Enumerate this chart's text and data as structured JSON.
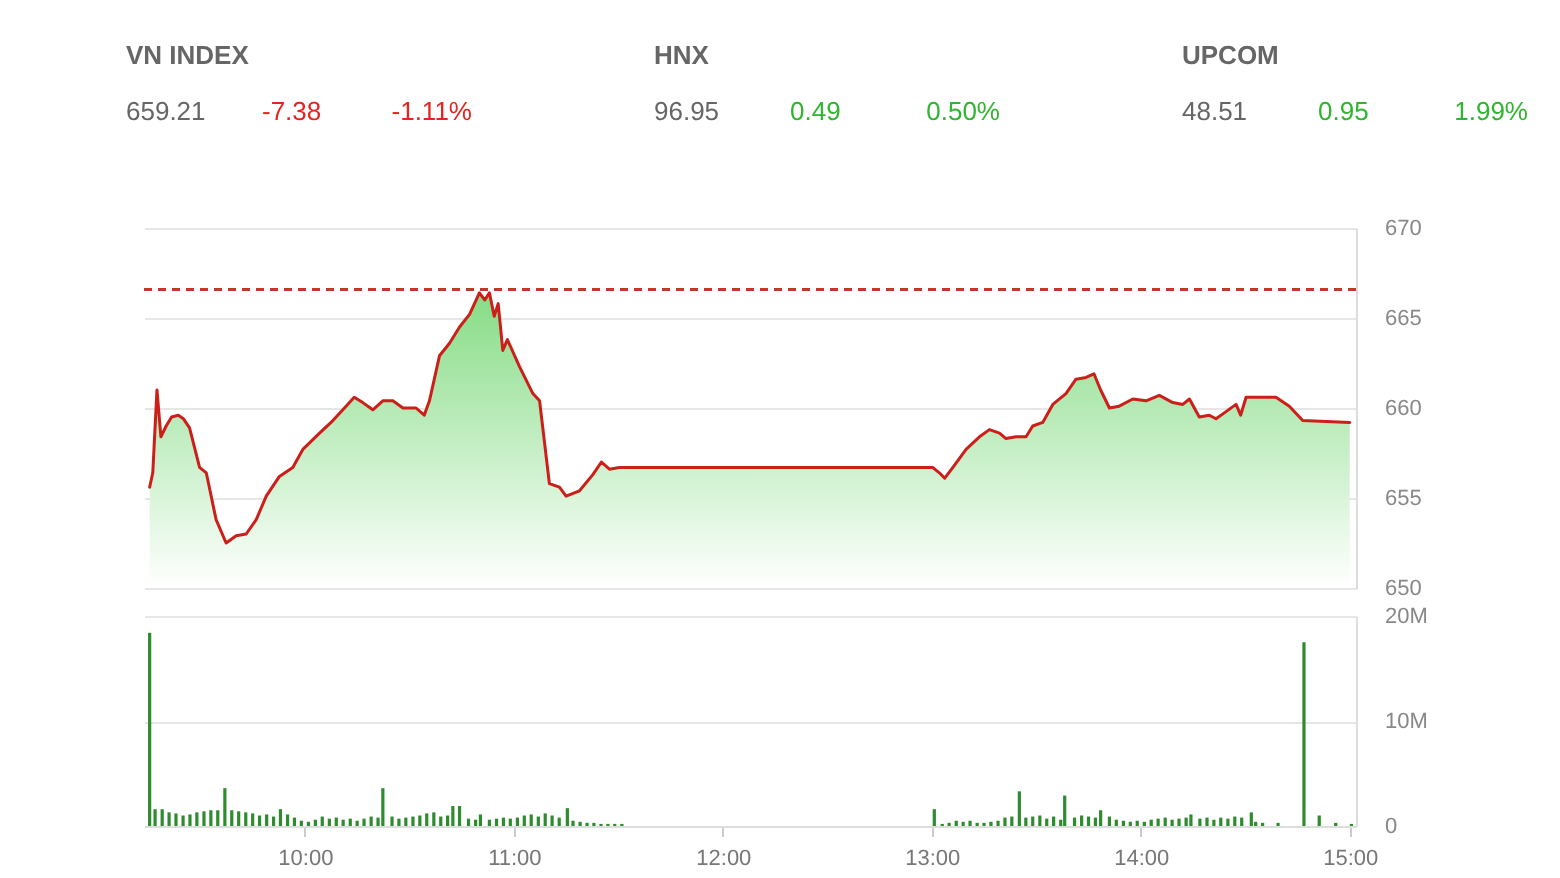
{
  "chart_data": [
    {
      "type": "other",
      "categories": [
        "VN INDEX",
        "HNX",
        "UPCOM"
      ],
      "data_labels": true,
      "series": [
        {
          "values": [
            659.21,
            96.95,
            48.51
          ],
          "color": "#666666"
        },
        {
          "values": [
            -7.38,
            0.49,
            0.95
          ],
          "colors": [
            "#e8231f",
            "#2fb52f",
            "#2fb52f"
          ]
        }
      ],
      "annotations": [
        "-1.11%",
        "0.50%",
        "1.99%"
      ]
    },
    {
      "type": "area",
      "color": "#cc1f1a",
      "x": [
        9.257,
        9.272,
        9.292,
        9.311,
        9.336,
        9.362,
        9.394,
        9.419,
        9.448,
        9.496,
        9.528,
        9.575,
        9.623,
        9.671,
        9.719,
        9.767,
        9.815,
        9.878,
        9.942,
        9.99,
        10.07,
        10.134,
        10.197,
        10.236,
        10.277,
        10.325,
        10.373,
        10.421,
        10.469,
        10.532,
        10.571,
        10.596,
        10.644,
        10.692,
        10.74,
        10.788,
        10.835,
        10.861,
        10.883,
        10.906,
        10.925,
        10.947,
        10.969,
        11.027,
        11.091,
        11.123,
        11.17,
        11.218,
        11.25,
        11.314,
        11.378,
        11.419,
        11.457,
        11.505,
        13.004,
        13.036,
        13.062,
        13.101,
        13.164,
        13.228,
        13.276,
        13.324,
        13.355,
        13.403,
        13.451,
        13.483,
        13.531,
        13.579,
        13.642,
        13.69,
        13.738,
        13.776,
        13.808,
        13.85,
        13.897,
        13.962,
        14.025,
        14.089,
        14.153,
        14.201,
        14.233,
        14.28,
        14.328,
        14.36,
        14.408,
        14.456,
        14.478,
        14.504,
        14.567,
        14.647,
        14.711,
        14.775,
        15.0
      ],
      "values": [
        655.6,
        656.4,
        661.0,
        658.4,
        659.0,
        659.5,
        659.6,
        659.4,
        658.9,
        656.7,
        656.4,
        653.8,
        652.5,
        652.9,
        653.0,
        653.8,
        655.1,
        656.2,
        656.7,
        657.7,
        658.6,
        659.3,
        660.1,
        660.6,
        660.3,
        659.9,
        660.4,
        660.4,
        660.0,
        660.0,
        659.6,
        660.4,
        662.9,
        663.6,
        664.5,
        665.2,
        666.4,
        666.0,
        666.4,
        665.1,
        665.8,
        663.2,
        663.8,
        662.3,
        660.8,
        660.4,
        655.8,
        655.6,
        655.1,
        655.4,
        656.3,
        657.0,
        656.6,
        656.7,
        656.7,
        656.4,
        656.1,
        656.7,
        657.7,
        658.4,
        658.8,
        658.6,
        658.3,
        658.4,
        658.4,
        659.0,
        659.2,
        660.2,
        660.8,
        661.6,
        661.7,
        661.9,
        661.0,
        660.0,
        660.1,
        660.5,
        660.4,
        660.7,
        660.3,
        660.2,
        660.5,
        659.5,
        659.6,
        659.4,
        659.8,
        660.2,
        659.6,
        660.6,
        660.6,
        660.6,
        660.1,
        659.3,
        659.2
      ],
      "xlim": [
        9.23,
        15.03
      ],
      "ylim": [
        650,
        670
      ],
      "yticks": [
        650,
        655,
        660,
        665,
        670
      ],
      "grid": "y",
      "tick_labels": "y",
      "ref_lines": [
        {
          "axis": "y",
          "value": 666.6,
          "color": "#c0392b",
          "line_style": "dashed"
        }
      ]
    },
    {
      "type": "bar",
      "color": "#2e8b2e",
      "x": [
        9.257,
        9.283,
        9.317,
        9.35,
        9.383,
        9.417,
        9.45,
        9.483,
        9.517,
        9.55,
        9.583,
        9.617,
        9.65,
        9.683,
        9.717,
        9.75,
        9.783,
        9.817,
        9.85,
        9.883,
        9.917,
        9.95,
        9.983,
        10.017,
        10.05,
        10.083,
        10.117,
        10.15,
        10.183,
        10.217,
        10.25,
        10.283,
        10.317,
        10.35,
        10.373,
        10.417,
        10.45,
        10.483,
        10.517,
        10.55,
        10.583,
        10.617,
        10.65,
        10.683,
        10.708,
        10.74,
        10.783,
        10.817,
        10.84,
        10.883,
        10.917,
        10.95,
        10.983,
        11.017,
        11.05,
        11.083,
        11.117,
        11.15,
        11.183,
        11.217,
        11.256,
        11.283,
        11.317,
        11.35,
        11.383,
        11.417,
        11.45,
        11.483,
        11.517,
        13.012,
        13.05,
        13.083,
        13.117,
        13.15,
        13.183,
        13.217,
        13.25,
        13.283,
        13.317,
        13.35,
        13.383,
        13.419,
        13.45,
        13.483,
        13.517,
        13.55,
        13.583,
        13.617,
        13.636,
        13.683,
        13.717,
        13.75,
        13.783,
        13.808,
        13.85,
        13.883,
        13.917,
        13.95,
        13.983,
        14.017,
        14.05,
        14.083,
        14.117,
        14.15,
        14.183,
        14.217,
        14.24,
        14.283,
        14.317,
        14.35,
        14.383,
        14.417,
        14.45,
        14.483,
        14.529,
        14.55,
        14.583,
        14.657,
        14.781,
        14.854,
        14.933,
        15.008
      ],
      "values": [
        18.4,
        1.6,
        1.6,
        1.3,
        1.2,
        1.0,
        1.1,
        1.3,
        1.4,
        1.5,
        1.5,
        3.6,
        1.5,
        1.4,
        1.3,
        1.2,
        1.0,
        1.1,
        0.9,
        1.6,
        1.1,
        0.8,
        0.5,
        0.4,
        0.6,
        0.9,
        0.7,
        0.8,
        0.6,
        0.7,
        0.5,
        0.7,
        0.9,
        0.8,
        3.6,
        0.9,
        0.7,
        0.8,
        0.9,
        1.0,
        1.2,
        1.3,
        0.9,
        1.0,
        1.9,
        1.9,
        0.7,
        0.6,
        1.1,
        0.6,
        0.7,
        0.8,
        0.7,
        0.8,
        1.0,
        1.1,
        0.9,
        1.2,
        1.0,
        0.8,
        1.7,
        0.5,
        0.4,
        0.3,
        0.3,
        0.2,
        0.2,
        0.2,
        0.2,
        1.6,
        0.2,
        0.3,
        0.5,
        0.4,
        0.5,
        0.3,
        0.3,
        0.4,
        0.5,
        0.8,
        0.9,
        3.3,
        0.8,
        0.9,
        1.0,
        0.7,
        0.9,
        0.6,
        2.9,
        0.8,
        1.0,
        0.9,
        0.8,
        1.5,
        0.9,
        0.6,
        0.5,
        0.4,
        0.5,
        0.4,
        0.6,
        0.7,
        0.8,
        0.6,
        0.7,
        0.8,
        1.1,
        0.7,
        0.8,
        0.6,
        0.8,
        0.7,
        0.9,
        0.8,
        1.3,
        0.4,
        0.3,
        0.3,
        17.5,
        1.0,
        0.3,
        0.2
      ],
      "xlim": [
        9.23,
        15.03
      ],
      "xticks": [
        {
          "value": 10,
          "label": "10:00"
        },
        {
          "value": 11,
          "label": "11:00"
        },
        {
          "value": 12,
          "label": "12:00"
        },
        {
          "value": 13,
          "label": "13:00"
        },
        {
          "value": 14,
          "label": "14:00"
        },
        {
          "value": 15,
          "label": "15:00"
        }
      ],
      "ylim": [
        0,
        20
      ],
      "yticks": [
        0,
        {
          "value": 10,
          "label": "10M"
        },
        {
          "value": 20,
          "label": "20M"
        }
      ],
      "grid": "y"
    }
  ]
}
